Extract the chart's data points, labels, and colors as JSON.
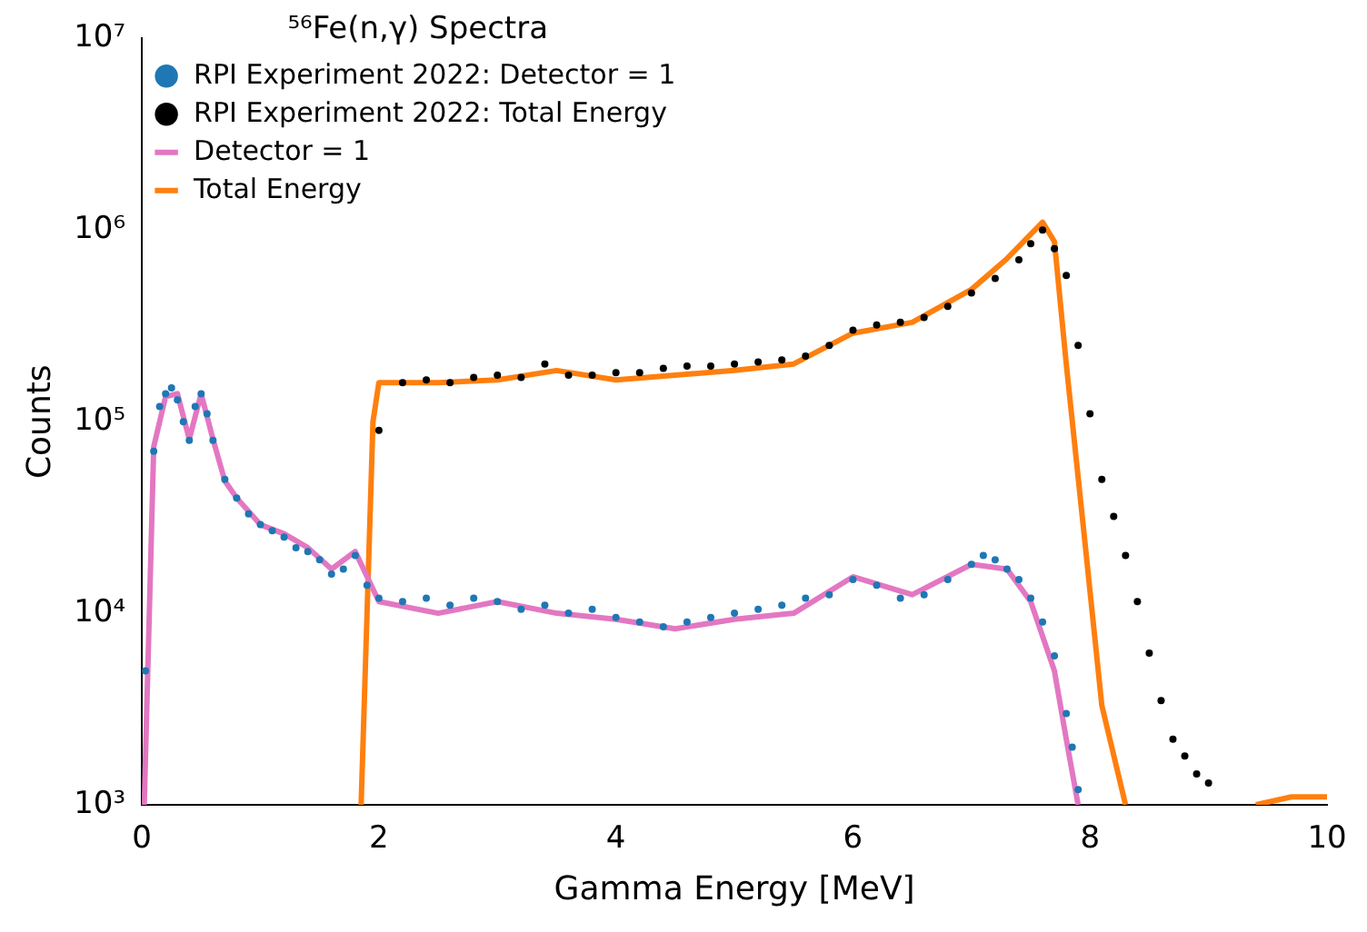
{
  "chart_data": {
    "type": "scatter",
    "xlabel": "Gamma Energy [MeV]",
    "ylabel": "Counts",
    "legend_title": "⁵⁶Fe(n,γ) Spectra",
    "log": "y",
    "legend": "top left",
    "xlim": [
      0,
      10
    ],
    "ylim": [
      1000,
      10000000
    ],
    "xticks": [
      0,
      2,
      4,
      6,
      8,
      10
    ],
    "yticks": [
      {
        "value": 1000,
        "label": "10³"
      },
      {
        "value": 10000,
        "label": "10⁴"
      },
      {
        "value": 100000,
        "label": "10⁵"
      },
      {
        "value": 1000000,
        "label": "10⁶"
      },
      {
        "value": 10000000,
        "label": "10⁷"
      }
    ],
    "series": [
      {
        "name": "RPI Experiment 2022: Detector = 1",
        "color": "#1f77b4",
        "x": [
          0.03,
          0.1,
          0.15,
          0.2,
          0.25,
          0.3,
          0.35,
          0.4,
          0.45,
          0.5,
          0.55,
          0.6,
          0.7,
          0.8,
          0.9,
          1.0,
          1.1,
          1.2,
          1.3,
          1.4,
          1.5,
          1.6,
          1.7,
          1.8,
          1.9,
          2.0,
          2.2,
          2.4,
          2.6,
          2.8,
          3.0,
          3.2,
          3.4,
          3.6,
          3.8,
          4.0,
          4.2,
          4.4,
          4.6,
          4.8,
          5.0,
          5.2,
          5.4,
          5.6,
          5.8,
          6.0,
          6.2,
          6.4,
          6.6,
          6.8,
          7.0,
          7.1,
          7.2,
          7.3,
          7.4,
          7.5,
          7.6,
          7.7,
          7.8,
          7.85,
          7.9
        ],
        "values": [
          5000,
          70000,
          120000,
          140000,
          150000,
          130000,
          100000,
          80000,
          120000,
          140000,
          110000,
          80000,
          50000,
          40000,
          33000,
          29000,
          27000,
          25000,
          22000,
          21000,
          19000,
          16000,
          17000,
          20000,
          14000,
          12000,
          11500,
          12000,
          11000,
          12000,
          11500,
          10500,
          11000,
          10000,
          10500,
          9500,
          9000,
          8500,
          9000,
          9500,
          10000,
          10500,
          11000,
          12000,
          12500,
          15000,
          14000,
          12000,
          12500,
          15000,
          18000,
          20000,
          19000,
          17000,
          15000,
          12000,
          9000,
          6000,
          3000,
          2000,
          1200
        ]
      },
      {
        "name": "RPI Experiment 2022: Total Energy",
        "color": "#000000",
        "x": [
          2.0,
          2.2,
          2.4,
          2.6,
          2.8,
          3.0,
          3.2,
          3.4,
          3.6,
          3.8,
          4.0,
          4.2,
          4.4,
          4.6,
          4.8,
          5.0,
          5.2,
          5.4,
          5.6,
          5.8,
          6.0,
          6.2,
          6.4,
          6.6,
          6.8,
          7.0,
          7.2,
          7.4,
          7.5,
          7.6,
          7.7,
          7.8,
          7.9,
          8.0,
          8.1,
          8.2,
          8.3,
          8.4,
          8.5,
          8.6,
          8.7,
          8.8,
          8.9,
          9.0
        ],
        "values": [
          90000,
          160000,
          165000,
          160000,
          170000,
          175000,
          170000,
          200000,
          175000,
          175000,
          180000,
          180000,
          190000,
          195000,
          195000,
          200000,
          205000,
          210000,
          220000,
          250000,
          300000,
          320000,
          330000,
          350000,
          400000,
          470000,
          560000,
          700000,
          850000,
          1000000,
          800000,
          580000,
          250000,
          110000,
          50000,
          32000,
          20000,
          11500,
          6200,
          3500,
          2200,
          1800,
          1450,
          1300
        ]
      },
      {
        "name": "Detector = 1",
        "type": "line",
        "color": "#e377c2",
        "x": [
          0.02,
          0.1,
          0.2,
          0.3,
          0.4,
          0.5,
          0.6,
          0.7,
          0.8,
          1.0,
          1.2,
          1.4,
          1.6,
          1.8,
          2.0,
          2.5,
          3.0,
          3.5,
          4.0,
          4.5,
          5.0,
          5.5,
          6.0,
          6.5,
          7.0,
          7.3,
          7.5,
          7.7,
          7.8,
          7.9
        ],
        "values": [
          1000,
          74000,
          135000,
          140000,
          81000,
          140000,
          81000,
          49000,
          40000,
          29000,
          26000,
          22000,
          17000,
          21000,
          11500,
          10000,
          11500,
          10000,
          9300,
          8300,
          9300,
          10000,
          15500,
          12500,
          18000,
          17000,
          11500,
          5000,
          2200,
          1000
        ]
      },
      {
        "name": "Total Energy",
        "type": "line",
        "color": "#ff7f0e",
        "x": [
          1.85,
          1.95,
          2.0,
          2.5,
          3.0,
          3.5,
          4.0,
          4.5,
          5.0,
          5.5,
          6.0,
          6.5,
          7.0,
          7.3,
          7.6,
          7.7,
          7.8,
          7.95,
          8.1,
          8.3,
          8.4,
          9.4,
          9.7,
          10.0
        ],
        "values": [
          1000,
          100000,
          160000,
          160000,
          165000,
          185000,
          165000,
          175000,
          185000,
          200000,
          290000,
          330000,
          490000,
          710000,
          1100000,
          870000,
          200000,
          26000,
          3300,
          1000,
          null,
          1000,
          1100,
          1100
        ]
      }
    ]
  }
}
